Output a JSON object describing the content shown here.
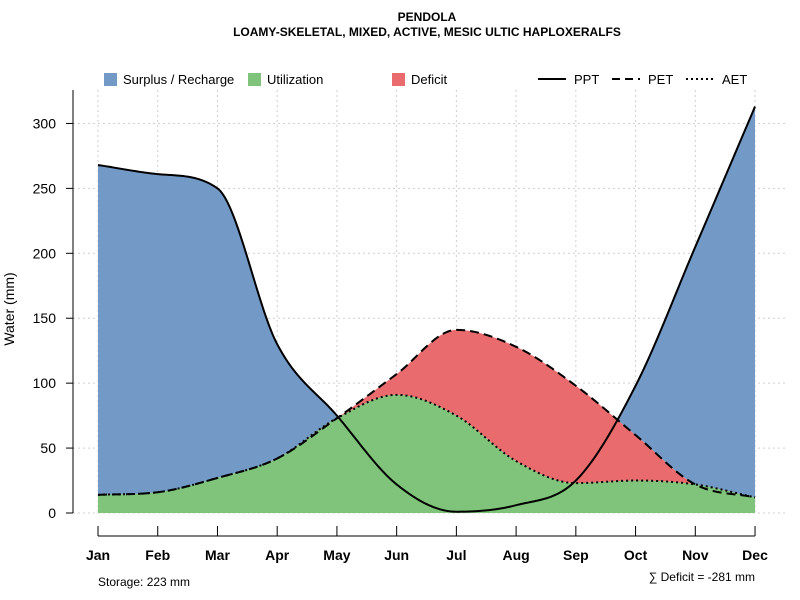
{
  "chart_data": {
    "type": "area",
    "title": "PENDOLA",
    "subtitle": "LOAMY-SKELETAL, MIXED, ACTIVE, MESIC ULTIC HAPLOXERALFS",
    "ylabel": "Water (mm)",
    "xlabel": "",
    "ylim": [
      0,
      325
    ],
    "yticks": [
      0,
      50,
      100,
      150,
      200,
      250,
      300
    ],
    "categories": [
      "Jan",
      "Feb",
      "Mar",
      "Apr",
      "May",
      "Jun",
      "Jul",
      "Aug",
      "Sep",
      "Oct",
      "Nov",
      "Dec"
    ],
    "grid": true,
    "legend_position": "top",
    "series": [
      {
        "name": "PPT",
        "style": "solid",
        "values": [
          268,
          261,
          250,
          130,
          75,
          22,
          1,
          6,
          25,
          98,
          205,
          313
        ]
      },
      {
        "name": "PET",
        "style": "dashed",
        "values": [
          14,
          16,
          27,
          42,
          73,
          107,
          141,
          128,
          98,
          60,
          22,
          12
        ]
      },
      {
        "name": "AET",
        "style": "dotted",
        "values": [
          14,
          16,
          27,
          42,
          73,
          91,
          75,
          40,
          23,
          25,
          22,
          12
        ]
      }
    ],
    "fills": [
      {
        "name": "Surplus / Recharge",
        "color": "#7399c6"
      },
      {
        "name": "Utilization",
        "color": "#7fc47a"
      },
      {
        "name": "Deficit",
        "color": "#ea6b6e"
      }
    ],
    "legend": {
      "fills": [
        "Surplus / Recharge",
        "Utilization",
        "Deficit"
      ],
      "lines": [
        "PPT",
        "PET",
        "AET"
      ]
    },
    "notes": {
      "storage": "Storage: 223 mm",
      "deficit": "∑ Deficit = -281 mm"
    }
  }
}
